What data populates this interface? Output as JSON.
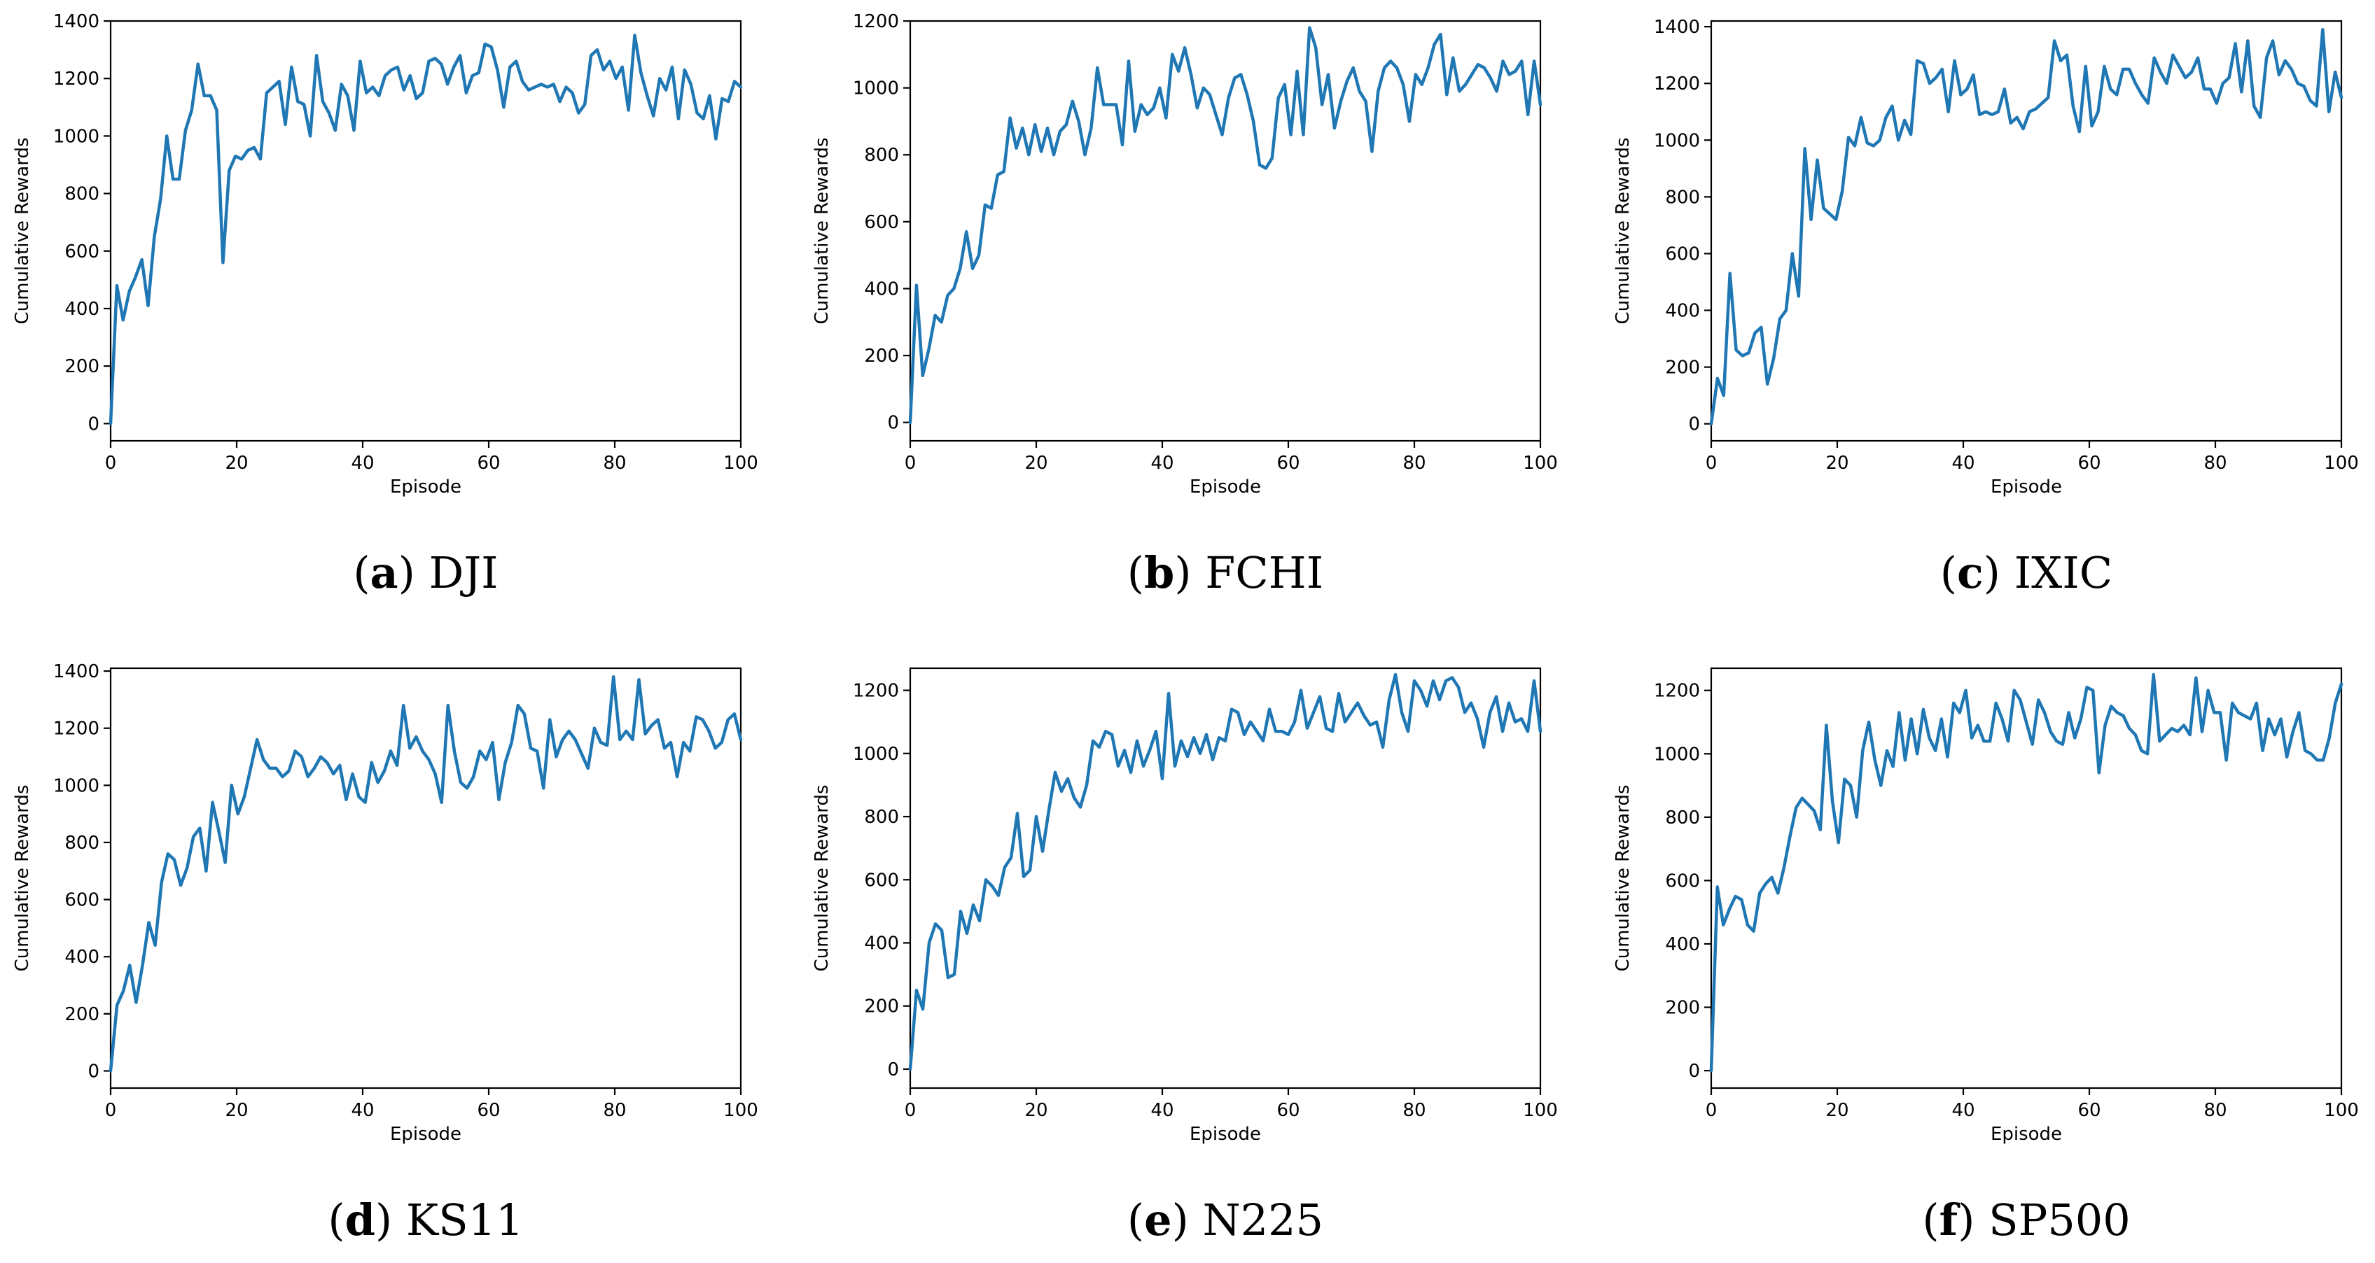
{
  "colors": {
    "series": "#1f77b4",
    "axis": "#000000",
    "background": "#ffffff"
  },
  "chart_data": [
    {
      "id": "dji",
      "type": "line",
      "caption_letter": "a",
      "caption_name": "DJI",
      "xlabel": "Episode",
      "ylabel": "Cumulative Rewards",
      "xlim": [
        0,
        100
      ],
      "ylim": [
        -60,
        1400
      ],
      "xticks": [
        0,
        20,
        40,
        60,
        80,
        100
      ],
      "yticks": [
        0,
        200,
        400,
        600,
        800,
        1000,
        1200,
        1400
      ],
      "series": [
        {
          "name": "DJI",
          "values": [
            0,
            480,
            360,
            460,
            510,
            570,
            410,
            650,
            780,
            1000,
            850,
            850,
            1020,
            1090,
            1250,
            1140,
            1140,
            1090,
            560,
            880,
            930,
            920,
            950,
            960,
            920,
            1150,
            1170,
            1190,
            1040,
            1240,
            1120,
            1110,
            1000,
            1280,
            1120,
            1080,
            1020,
            1180,
            1140,
            1020,
            1260,
            1150,
            1170,
            1140,
            1210,
            1230,
            1240,
            1160,
            1210,
            1130,
            1150,
            1260,
            1270,
            1250,
            1180,
            1240,
            1280,
            1150,
            1210,
            1220,
            1320,
            1310,
            1230,
            1100,
            1240,
            1260,
            1190,
            1160,
            1170,
            1180,
            1170,
            1180,
            1120,
            1170,
            1150,
            1080,
            1110,
            1280,
            1300,
            1230,
            1260,
            1200,
            1240,
            1090,
            1350,
            1220,
            1140,
            1070,
            1200,
            1160,
            1240,
            1060,
            1230,
            1180,
            1080,
            1060,
            1140,
            990,
            1130,
            1120,
            1190,
            1170
          ]
        }
      ]
    },
    {
      "id": "fchi",
      "type": "line",
      "caption_letter": "b",
      "caption_name": "FCHI",
      "xlabel": "Episode",
      "ylabel": "Cumulative Rewards",
      "xlim": [
        0,
        100
      ],
      "ylim": [
        -55,
        1200
      ],
      "xticks": [
        0,
        20,
        40,
        60,
        80,
        100
      ],
      "yticks": [
        0,
        200,
        400,
        600,
        800,
        1000,
        1200
      ],
      "series": [
        {
          "name": "FCHI",
          "values": [
            0,
            410,
            140,
            220,
            320,
            300,
            380,
            400,
            460,
            570,
            460,
            500,
            650,
            640,
            740,
            750,
            910,
            820,
            880,
            800,
            890,
            810,
            880,
            800,
            870,
            890,
            960,
            900,
            800,
            880,
            1060,
            950,
            950,
            950,
            830,
            1080,
            870,
            950,
            920,
            940,
            1000,
            910,
            1100,
            1050,
            1120,
            1040,
            940,
            1000,
            980,
            920,
            860,
            970,
            1030,
            1040,
            980,
            900,
            770,
            760,
            790,
            970,
            1010,
            860,
            1050,
            860,
            1180,
            1120,
            950,
            1040,
            880,
            960,
            1020,
            1060,
            990,
            960,
            810,
            990,
            1060,
            1080,
            1060,
            1010,
            900,
            1040,
            1010,
            1060,
            1130,
            1160,
            980,
            1090,
            990,
            1010,
            1040,
            1070,
            1060,
            1030,
            990,
            1080,
            1040,
            1050,
            1080,
            920,
            1080,
            950
          ]
        }
      ]
    },
    {
      "id": "ixic",
      "type": "line",
      "caption_letter": "c",
      "caption_name": "IXIC",
      "xlabel": "Episode",
      "ylabel": "Cumulative Rewards",
      "xlim": [
        0,
        100
      ],
      "ylim": [
        -60,
        1420
      ],
      "xticks": [
        0,
        20,
        40,
        60,
        80,
        100
      ],
      "yticks": [
        0,
        200,
        400,
        600,
        800,
        1000,
        1200,
        1400
      ],
      "series": [
        {
          "name": "IXIC",
          "values": [
            0,
            160,
            100,
            530,
            260,
            240,
            250,
            320,
            340,
            140,
            230,
            370,
            400,
            600,
            450,
            970,
            720,
            930,
            760,
            740,
            720,
            820,
            1010,
            980,
            1080,
            990,
            980,
            1000,
            1080,
            1120,
            1000,
            1070,
            1020,
            1280,
            1270,
            1200,
            1220,
            1250,
            1100,
            1280,
            1160,
            1180,
            1230,
            1090,
            1100,
            1090,
            1100,
            1180,
            1060,
            1080,
            1040,
            1100,
            1110,
            1130,
            1150,
            1350,
            1280,
            1300,
            1120,
            1030,
            1260,
            1050,
            1100,
            1260,
            1180,
            1160,
            1250,
            1250,
            1200,
            1160,
            1130,
            1290,
            1240,
            1200,
            1300,
            1260,
            1220,
            1240,
            1290,
            1180,
            1180,
            1130,
            1200,
            1220,
            1340,
            1170,
            1350,
            1120,
            1080,
            1290,
            1350,
            1230,
            1280,
            1250,
            1200,
            1190,
            1140,
            1120,
            1390,
            1100,
            1240,
            1150
          ]
        }
      ]
    },
    {
      "id": "ks11",
      "type": "line",
      "caption_letter": "d",
      "caption_name": "KS11",
      "xlabel": "Episode",
      "ylabel": "Cumulative Rewards",
      "xlim": [
        0,
        100
      ],
      "ylim": [
        -60,
        1410
      ],
      "xticks": [
        0,
        20,
        40,
        60,
        80,
        100
      ],
      "yticks": [
        0,
        200,
        400,
        600,
        800,
        1000,
        1200,
        1400
      ],
      "series": [
        {
          "name": "KS11",
          "values": [
            0,
            230,
            280,
            370,
            240,
            370,
            520,
            440,
            660,
            760,
            740,
            650,
            710,
            820,
            850,
            700,
            940,
            840,
            730,
            1000,
            900,
            960,
            1060,
            1160,
            1090,
            1060,
            1060,
            1030,
            1050,
            1120,
            1100,
            1030,
            1060,
            1100,
            1080,
            1040,
            1070,
            950,
            1040,
            960,
            940,
            1080,
            1010,
            1050,
            1120,
            1070,
            1280,
            1130,
            1170,
            1120,
            1090,
            1040,
            940,
            1280,
            1120,
            1010,
            990,
            1030,
            1120,
            1090,
            1150,
            950,
            1080,
            1150,
            1280,
            1250,
            1130,
            1120,
            990,
            1230,
            1100,
            1160,
            1190,
            1160,
            1110,
            1060,
            1200,
            1150,
            1140,
            1380,
            1160,
            1190,
            1160,
            1370,
            1180,
            1210,
            1230,
            1130,
            1150,
            1030,
            1150,
            1120,
            1240,
            1230,
            1190,
            1130,
            1150,
            1230,
            1250,
            1160
          ]
        }
      ]
    },
    {
      "id": "n225",
      "type": "line",
      "caption_letter": "e",
      "caption_name": "N225",
      "xlabel": "Episode",
      "ylabel": "Cumulative Rewards",
      "xlim": [
        0,
        100
      ],
      "ylim": [
        -60,
        1270
      ],
      "xticks": [
        0,
        20,
        40,
        60,
        80,
        100
      ],
      "yticks": [
        0,
        200,
        400,
        600,
        800,
        1000,
        1200
      ],
      "series": [
        {
          "name": "N225",
          "values": [
            0,
            250,
            190,
            400,
            460,
            440,
            290,
            300,
            500,
            430,
            520,
            470,
            600,
            580,
            550,
            640,
            670,
            810,
            610,
            630,
            800,
            690,
            820,
            940,
            880,
            920,
            860,
            830,
            900,
            1040,
            1020,
            1070,
            1060,
            960,
            1010,
            940,
            1040,
            960,
            1010,
            1070,
            920,
            1190,
            960,
            1040,
            990,
            1050,
            1000,
            1060,
            980,
            1050,
            1040,
            1140,
            1130,
            1060,
            1100,
            1070,
            1040,
            1140,
            1070,
            1070,
            1060,
            1100,
            1200,
            1080,
            1130,
            1180,
            1080,
            1070,
            1190,
            1100,
            1130,
            1160,
            1120,
            1090,
            1100,
            1020,
            1170,
            1250,
            1130,
            1070,
            1230,
            1200,
            1150,
            1230,
            1170,
            1230,
            1240,
            1210,
            1130,
            1160,
            1110,
            1020,
            1130,
            1180,
            1070,
            1160,
            1100,
            1110,
            1070,
            1230,
            1070
          ]
        }
      ]
    },
    {
      "id": "sp500",
      "type": "line",
      "caption_letter": "f",
      "caption_name": "SP500",
      "xlabel": "Episode",
      "ylabel": "Cumulative Rewards",
      "xlim": [
        0,
        100
      ],
      "ylim": [
        -55,
        1270
      ],
      "xticks": [
        0,
        20,
        40,
        60,
        80,
        100
      ],
      "yticks": [
        0,
        200,
        400,
        600,
        800,
        1000,
        1200
      ],
      "series": [
        {
          "name": "SP500",
          "values": [
            0,
            580,
            460,
            510,
            550,
            540,
            460,
            440,
            560,
            590,
            610,
            560,
            640,
            740,
            830,
            860,
            840,
            820,
            760,
            1090,
            850,
            720,
            920,
            900,
            800,
            1010,
            1100,
            980,
            900,
            1010,
            960,
            1130,
            980,
            1110,
            1000,
            1140,
            1050,
            1010,
            1110,
            990,
            1160,
            1130,
            1200,
            1050,
            1090,
            1040,
            1040,
            1160,
            1110,
            1040,
            1200,
            1170,
            1100,
            1030,
            1170,
            1130,
            1070,
            1040,
            1030,
            1130,
            1050,
            1110,
            1210,
            1200,
            940,
            1090,
            1150,
            1130,
            1120,
            1080,
            1060,
            1010,
            1000,
            1250,
            1040,
            1060,
            1080,
            1070,
            1090,
            1060,
            1240,
            1070,
            1200,
            1130,
            1130,
            980,
            1160,
            1130,
            1120,
            1110,
            1160,
            1010,
            1110,
            1060,
            1110,
            990,
            1070,
            1130,
            1010,
            1000,
            980,
            980,
            1050,
            1160,
            1220
          ]
        }
      ]
    }
  ]
}
